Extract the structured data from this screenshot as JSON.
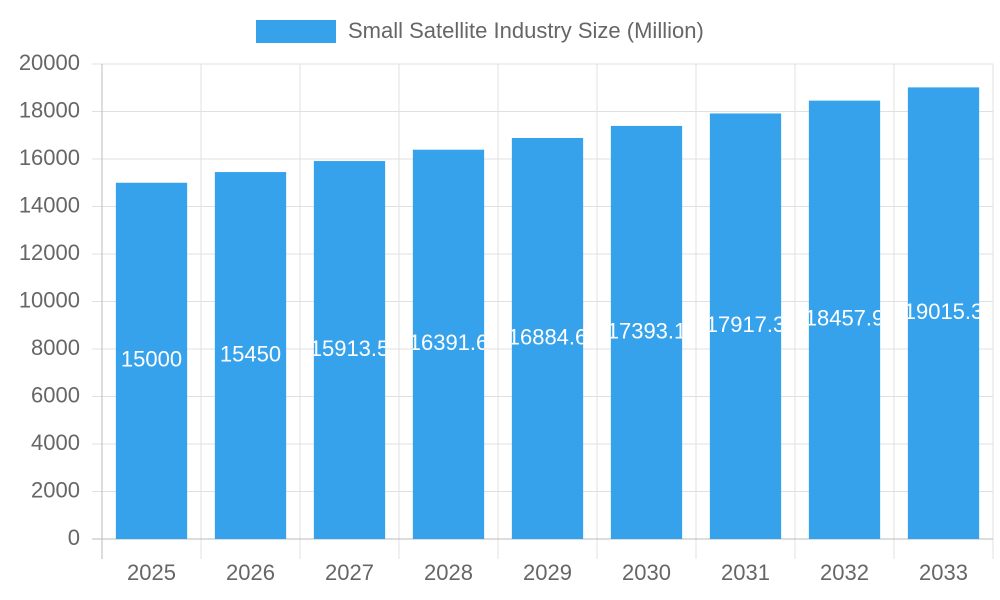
{
  "chart_data": {
    "type": "bar",
    "series": [
      {
        "name": "Small Satellite Industry Size (Million)",
        "color": "#36a2eb",
        "values": [
          15000,
          15450,
          15913.5,
          16391.6,
          16884.6,
          17393.1,
          17917.3,
          18457.9,
          19015.3
        ]
      }
    ],
    "categories": [
      "2025",
      "2026",
      "2027",
      "2028",
      "2029",
      "2030",
      "2031",
      "2032",
      "2033"
    ],
    "ylim": [
      0,
      20000
    ],
    "yticks": [
      0,
      2000,
      4000,
      6000,
      8000,
      10000,
      12000,
      14000,
      16000,
      18000,
      20000
    ],
    "grid": true,
    "legend": "top"
  }
}
